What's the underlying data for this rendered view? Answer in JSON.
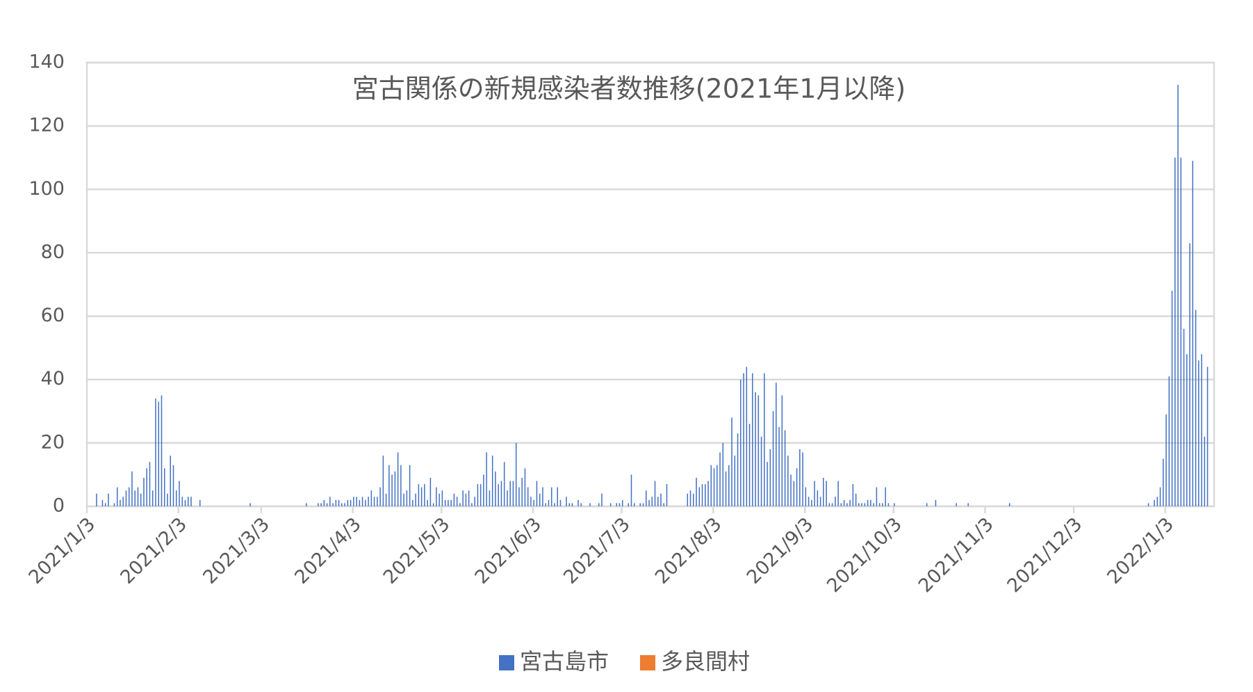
{
  "chart_data": {
    "type": "bar",
    "title": "宮古関係の新規感染者数推移(2021年1月以降)",
    "categories": [
      "2021/1/3",
      null,
      null,
      null,
      null,
      null,
      null,
      null,
      null,
      null,
      null,
      null,
      null,
      null,
      null,
      null,
      null,
      null,
      null,
      null,
      null,
      null,
      null,
      null,
      null,
      null,
      null,
      null,
      null,
      null,
      null,
      "2021/2/3",
      null,
      null,
      null,
      null,
      null,
      null,
      null,
      null,
      null,
      null,
      null,
      null,
      null,
      null,
      null,
      null,
      null,
      null,
      null,
      null,
      null,
      null,
      null,
      null,
      null,
      null,
      null,
      "2021/3/3",
      null,
      null,
      null,
      null,
      null,
      null,
      null,
      null,
      null,
      null,
      null,
      null,
      null,
      null,
      null,
      null,
      null,
      null,
      null,
      null,
      null,
      null,
      null,
      null,
      null,
      null,
      null,
      null,
      null,
      null,
      "2021/4/3",
      null,
      null,
      null,
      null,
      null,
      null,
      null,
      null,
      null,
      null,
      null,
      null,
      null,
      null,
      null,
      null,
      null,
      null,
      null,
      null,
      null,
      null,
      null,
      null,
      null,
      null,
      null,
      null,
      null,
      "2021/5/3",
      null,
      null,
      null,
      null,
      null,
      null,
      null,
      null,
      null,
      null,
      null,
      null,
      null,
      null,
      null,
      null,
      null,
      null,
      null,
      null,
      null,
      null,
      null,
      null,
      null,
      null,
      null,
      null,
      null,
      null,
      "2021/6/3",
      null,
      null,
      null,
      null,
      null,
      null,
      null,
      null,
      null,
      null,
      null,
      null,
      null,
      null,
      null,
      null,
      null,
      null,
      null,
      null,
      null,
      null,
      null,
      null,
      null,
      null,
      null,
      null,
      null,
      "2021/7/3",
      null,
      null,
      null,
      null,
      null,
      null,
      null,
      null,
      null,
      null,
      null,
      null,
      null,
      null,
      null,
      null,
      null,
      null,
      null,
      null,
      null,
      null,
      null,
      null,
      null,
      null,
      null,
      null,
      null,
      null,
      "2021/8/3",
      null,
      null,
      null,
      null,
      null,
      null,
      null,
      null,
      null,
      null,
      null,
      null,
      null,
      null,
      null,
      null,
      null,
      null,
      null,
      null,
      null,
      null,
      null,
      null,
      null,
      null,
      null,
      null,
      null,
      null,
      "2021/9/3",
      null,
      null,
      null,
      null,
      null,
      null,
      null,
      null,
      null,
      null,
      null,
      null,
      null,
      null,
      null,
      null,
      null,
      null,
      null,
      null,
      null,
      null,
      null,
      null,
      null,
      null,
      null,
      null,
      null,
      "2021/10/3",
      null,
      null,
      null,
      null,
      null,
      null,
      null,
      null,
      null,
      null,
      null,
      null,
      null,
      null,
      null,
      null,
      null,
      null,
      null,
      null,
      null,
      null,
      null,
      null,
      null,
      null,
      null,
      null,
      null,
      null,
      "2021/11/3",
      null,
      null,
      null,
      null,
      null,
      null,
      null,
      null,
      null,
      null,
      null,
      null,
      null,
      null,
      null,
      null,
      null,
      null,
      null,
      null,
      null,
      null,
      null,
      null,
      null,
      null,
      null,
      null,
      null,
      "2021/12/3",
      null,
      null,
      null,
      null,
      null,
      null,
      null,
      null,
      null,
      null,
      null,
      null,
      null,
      null,
      null,
      null,
      null,
      null,
      null,
      null,
      null,
      null,
      null,
      null,
      null,
      null,
      null,
      null,
      null,
      null,
      "2022/1/3",
      null,
      null,
      null,
      null,
      null,
      null,
      null,
      null,
      null,
      null,
      null,
      null,
      null,
      null
    ],
    "series": [
      {
        "name": "宮古島市",
        "color": "#4472c4",
        "values": [
          0,
          0,
          0,
          4,
          0,
          2,
          1,
          4,
          0,
          1,
          6,
          2,
          3,
          5,
          6,
          11,
          5,
          6,
          4,
          9,
          12,
          14,
          5,
          34,
          33,
          35,
          12,
          4,
          16,
          13,
          5,
          8,
          3,
          2,
          3,
          3,
          0,
          0,
          2,
          0,
          0,
          0,
          0,
          0,
          0,
          0,
          0,
          0,
          0,
          0,
          0,
          0,
          0,
          0,
          0,
          1,
          0,
          0,
          0,
          0,
          0,
          0,
          0,
          0,
          0,
          0,
          0,
          0,
          0,
          0,
          0,
          0,
          0,
          0,
          1,
          0,
          0,
          0,
          1,
          1,
          2,
          1,
          3,
          1,
          2,
          2,
          1,
          1,
          2,
          2,
          3,
          3,
          2,
          3,
          2,
          3,
          5,
          3,
          3,
          6,
          16,
          4,
          13,
          10,
          11,
          17,
          13,
          4,
          5,
          13,
          2,
          4,
          7,
          6,
          7,
          2,
          9,
          1,
          6,
          4,
          5,
          2,
          2,
          2,
          4,
          3,
          1,
          5,
          4,
          5,
          1,
          3,
          7,
          7,
          10,
          17,
          5,
          16,
          11,
          7,
          8,
          14,
          5,
          8,
          8,
          20,
          6,
          9,
          12,
          6,
          3,
          2,
          8,
          4,
          6,
          1,
          2,
          6,
          1,
          6,
          2,
          0,
          3,
          1,
          1,
          0,
          2,
          1,
          0,
          0,
          1,
          0,
          0,
          1,
          4,
          0,
          0,
          1,
          0,
          1,
          1,
          2,
          0,
          1,
          10,
          1,
          0,
          1,
          1,
          5,
          2,
          3,
          8,
          3,
          4,
          1,
          7,
          0,
          0,
          0,
          0,
          0,
          0,
          4,
          5,
          4,
          9,
          6,
          7,
          7,
          8,
          13,
          12,
          13,
          17,
          20,
          11,
          13,
          28,
          16,
          23,
          40,
          42,
          44,
          26,
          42,
          36,
          35,
          22,
          42,
          14,
          18,
          30,
          39,
          25,
          35,
          24,
          16,
          10,
          8,
          12,
          18,
          17,
          6,
          3,
          2,
          8,
          5,
          3,
          9,
          8,
          1,
          1,
          3,
          8,
          1,
          2,
          1,
          2,
          7,
          4,
          1,
          1,
          1,
          2,
          2,
          1,
          6,
          1,
          1,
          6,
          1,
          0,
          1,
          0,
          0,
          0,
          0,
          0,
          0,
          0,
          0,
          0,
          0,
          1,
          0,
          0,
          2,
          0,
          0,
          0,
          0,
          0,
          0,
          1,
          0,
          0,
          0,
          1,
          0,
          0,
          0,
          0,
          0,
          0,
          0,
          0,
          0,
          0,
          0,
          0,
          0,
          1,
          0,
          0,
          0,
          0,
          0,
          0,
          0,
          0,
          0,
          0,
          0,
          0,
          0,
          0,
          0,
          0,
          0,
          0,
          0,
          0,
          0,
          0,
          0,
          0,
          0,
          0,
          0,
          0,
          0,
          0,
          0,
          0,
          0,
          0,
          0,
          0,
          0,
          0,
          0,
          0,
          0,
          0,
          0,
          0,
          0,
          0,
          1,
          0,
          2,
          3,
          6,
          15,
          29,
          41,
          68,
          110,
          133,
          110,
          56,
          48,
          83,
          109,
          62,
          46,
          48,
          22,
          44
        ]
      },
      {
        "name": "多良間村",
        "color": "#ed7d31",
        "values": [
          0,
          0,
          0,
          0,
          0,
          0,
          0,
          0,
          0,
          0,
          0,
          0,
          0,
          0,
          0,
          0,
          0,
          0,
          0,
          0,
          0,
          0,
          0,
          0,
          0,
          0,
          0,
          0,
          0,
          0,
          0,
          0,
          0,
          0,
          0,
          0,
          0,
          0,
          0,
          0,
          0,
          0,
          0,
          0,
          0,
          0,
          0,
          0,
          0,
          0,
          0,
          0,
          0,
          0,
          0,
          0,
          0,
          0,
          0,
          0,
          0,
          0,
          0,
          0,
          0,
          0,
          0,
          0,
          0,
          0,
          0,
          0,
          0,
          0,
          0,
          0,
          0,
          0,
          0,
          0,
          0,
          0,
          0,
          0,
          0,
          0,
          0,
          0,
          0,
          0,
          0,
          0,
          0,
          0,
          0,
          0,
          0,
          0,
          0,
          0,
          0,
          0,
          0,
          0,
          0,
          0,
          0,
          0,
          0,
          0,
          0,
          0,
          0,
          0,
          0,
          0,
          0,
          0,
          0,
          0,
          0,
          0,
          0,
          0,
          0,
          0,
          0,
          0,
          0,
          0,
          0,
          0,
          0,
          0,
          0,
          0,
          0,
          0,
          0,
          0,
          0,
          0,
          0,
          0,
          0,
          0,
          0,
          0,
          0,
          0,
          0,
          0,
          0,
          0,
          0,
          0,
          0,
          0,
          0,
          0,
          0,
          0,
          0,
          0,
          0,
          0,
          0,
          0,
          0,
          0,
          0,
          0,
          0,
          0,
          0,
          0,
          0,
          0,
          0,
          0,
          0,
          0,
          0,
          0,
          0,
          0,
          0,
          0,
          0,
          0,
          0,
          0,
          0,
          0,
          0,
          0,
          0,
          0,
          0,
          0,
          0,
          0,
          0,
          0,
          0,
          0,
          0,
          0,
          0,
          0,
          0,
          0,
          0,
          0,
          0,
          0,
          0,
          0,
          0,
          0,
          0,
          0,
          0,
          0,
          0,
          0,
          0,
          0,
          0,
          0,
          0,
          0,
          0,
          0,
          0,
          0,
          0,
          0,
          0,
          0,
          0,
          0,
          0,
          0,
          0,
          0,
          0,
          0,
          0,
          0,
          0,
          0,
          0,
          0,
          0,
          0,
          0,
          0,
          0,
          0,
          0,
          0,
          0,
          0,
          0,
          0,
          0,
          0,
          0,
          0,
          0,
          0,
          0,
          0,
          0,
          0,
          0,
          0,
          0,
          0,
          0,
          0,
          0,
          0,
          0,
          0,
          0,
          0,
          0,
          0,
          0,
          0,
          0,
          0,
          0,
          0,
          0,
          0,
          0,
          0,
          0,
          0,
          0,
          0,
          0,
          0,
          0,
          0,
          0,
          0,
          0,
          0,
          0,
          0,
          0,
          0,
          0,
          0,
          0,
          0,
          0,
          0,
          0,
          0,
          0,
          0,
          0,
          0,
          0,
          0,
          0,
          0,
          0,
          0,
          0,
          0,
          0,
          0,
          0,
          0,
          0,
          0,
          0,
          0,
          0,
          0,
          0,
          0,
          0,
          0,
          0,
          0,
          0,
          0,
          0,
          0,
          0,
          0,
          0,
          0,
          0,
          0,
          0,
          0,
          0,
          0,
          0,
          0,
          0,
          0,
          0,
          0,
          0,
          0,
          0,
          0,
          0,
          0,
          0,
          0
        ]
      }
    ],
    "ylim": [
      0,
      140
    ],
    "yticks": [
      0,
      20,
      40,
      60,
      80,
      100,
      120,
      140
    ],
    "grid": true,
    "legend": "bottom"
  }
}
